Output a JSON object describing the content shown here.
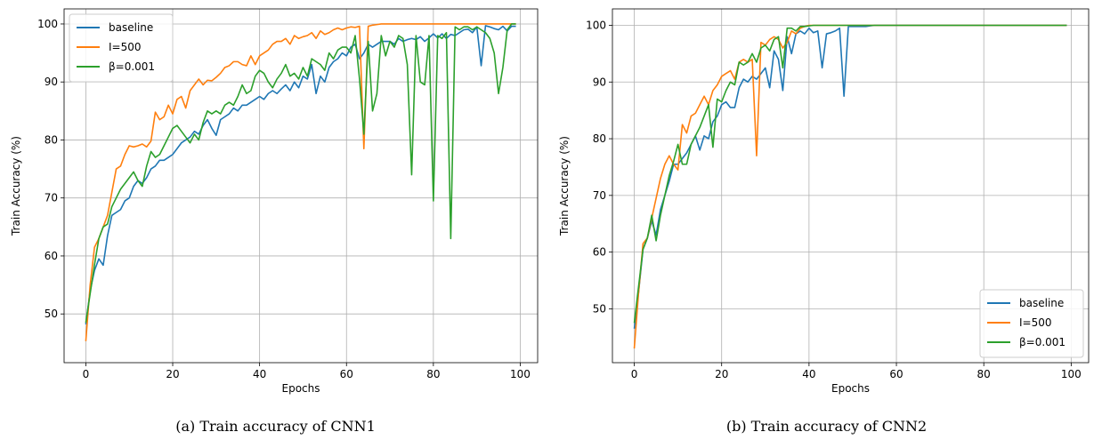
{
  "figure": {
    "caption_a": "(a) Train accuracy of CNN1",
    "caption_b": "(b) Train accuracy of CNN2"
  },
  "chart_data": [
    {
      "type": "line",
      "xlabel": "Epochs",
      "ylabel": "Train Accuracy (%)",
      "xlim": [
        -5,
        104
      ],
      "ylim": [
        41.6,
        102.6
      ],
      "xticks": [
        0,
        20,
        40,
        60,
        80,
        100
      ],
      "yticks": [
        50,
        60,
        70,
        80,
        90,
        100
      ],
      "grid": true,
      "legend": "top-left",
      "x_start": 0,
      "series": [
        {
          "name": "baseline",
          "color": "#1f77b4",
          "values": [
            48.2,
            54.0,
            57.5,
            59.5,
            58.4,
            63.5,
            67.0,
            67.5,
            68.0,
            69.5,
            70.0,
            72.0,
            73.0,
            72.5,
            73.5,
            75.0,
            75.5,
            76.5,
            76.5,
            77.0,
            77.5,
            78.5,
            79.5,
            80.0,
            80.5,
            81.5,
            81.0,
            82.5,
            83.5,
            82.0,
            80.8,
            83.5,
            84.0,
            84.5,
            85.5,
            85.0,
            86.0,
            86.0,
            86.5,
            87.0,
            87.5,
            87.0,
            88.0,
            88.5,
            88.0,
            88.8,
            89.5,
            88.5,
            90.0,
            89.0,
            91.0,
            90.5,
            93.0,
            88.0,
            91.0,
            90.0,
            92.5,
            93.5,
            94.0,
            95.0,
            94.5,
            96.0,
            96.5,
            94.0,
            95.0,
            96.5,
            96.0,
            96.5,
            97.0,
            97.0,
            97.0,
            96.5,
            97.5,
            97.0,
            97.3,
            97.5,
            97.3,
            97.8,
            97.0,
            97.6,
            98.3,
            97.6,
            98.3,
            97.5,
            98.2,
            98.0,
            98.5,
            99.0,
            99.1,
            98.5,
            99.5,
            92.8,
            99.7,
            99.5,
            99.2,
            99.0,
            99.6,
            98.8,
            99.6,
            99.6
          ]
        },
        {
          "name": "I=500",
          "color": "#ff7f0e",
          "values": [
            45.3,
            55.0,
            61.5,
            63.0,
            65.0,
            67.0,
            71.0,
            75.0,
            75.5,
            77.5,
            79.0,
            78.8,
            79.0,
            79.3,
            78.8,
            79.8,
            84.8,
            83.5,
            84.0,
            86.0,
            84.5,
            87.0,
            87.5,
            85.5,
            88.5,
            89.5,
            90.5,
            89.5,
            90.3,
            90.2,
            90.8,
            91.5,
            92.5,
            92.8,
            93.5,
            93.5,
            93.0,
            92.8,
            94.5,
            93.0,
            94.5,
            95.0,
            95.5,
            96.5,
            97.0,
            97.0,
            97.5,
            96.5,
            98.0,
            97.5,
            97.8,
            98.0,
            98.5,
            97.5,
            98.8,
            98.2,
            98.5,
            99.0,
            99.3,
            99.0,
            99.3,
            99.5,
            99.4,
            99.6,
            78.5,
            99.6,
            99.8,
            99.9,
            100.0,
            100.0,
            100.0,
            100.0,
            100.0,
            100.0,
            100.0,
            100.0,
            100.0,
            100.0,
            100.0,
            100.0,
            100.0,
            100.0,
            100.0,
            100.0,
            100.0,
            100.0,
            100.0,
            100.0,
            100.0,
            100.0,
            100.0,
            100.0,
            100.0,
            100.0,
            100.0,
            100.0,
            100.0,
            100.0,
            100.0,
            100.0
          ]
        },
        {
          "name": "β=0.001",
          "color": "#2ca02c",
          "values": [
            48.5,
            53.5,
            58.5,
            63.0,
            65.0,
            65.5,
            68.5,
            70.0,
            71.5,
            72.5,
            73.5,
            74.5,
            73.0,
            72.0,
            75.5,
            78.0,
            77.0,
            77.5,
            79.0,
            80.5,
            82.0,
            82.5,
            81.5,
            80.5,
            79.5,
            81.0,
            80.0,
            83.0,
            85.0,
            84.5,
            85.0,
            84.5,
            86.0,
            86.5,
            86.0,
            87.5,
            89.5,
            88.0,
            88.5,
            91.0,
            92.0,
            91.5,
            90.0,
            89.0,
            90.5,
            91.5,
            93.0,
            91.0,
            91.5,
            90.5,
            92.5,
            91.0,
            94.0,
            93.5,
            93.0,
            92.0,
            95.0,
            94.0,
            95.5,
            96.0,
            96.0,
            95.0,
            98.0,
            90.5,
            81.0,
            97.0,
            85.0,
            88.0,
            98.0,
            94.5,
            97.0,
            96.0,
            98.0,
            97.5,
            93.0,
            74.0,
            98.0,
            90.0,
            89.5,
            98.0,
            69.5,
            98.0,
            97.5,
            98.5,
            63.0,
            99.5,
            99.0,
            99.5,
            99.5,
            99.0,
            99.5,
            99.0,
            98.5,
            97.5,
            95.0,
            88.0,
            92.5,
            99.0,
            100.0,
            100.0
          ]
        }
      ]
    },
    {
      "type": "line",
      "xlabel": "Epochs",
      "ylabel": "Train Accuracy (%)",
      "xlim": [
        -5,
        104
      ],
      "ylim": [
        40.5,
        102.9
      ],
      "xticks": [
        0,
        20,
        40,
        60,
        80,
        100
      ],
      "yticks": [
        50,
        60,
        70,
        80,
        90,
        100
      ],
      "grid": true,
      "legend": "bottom-right",
      "x_start": 0,
      "series": [
        {
          "name": "baseline",
          "color": "#1f77b4",
          "values": [
            46.5,
            53.0,
            60.5,
            62.5,
            65.5,
            63.0,
            67.5,
            70.0,
            72.5,
            75.5,
            75.5,
            76.5,
            77.5,
            79.0,
            80.5,
            78.0,
            80.5,
            80.0,
            83.0,
            84.0,
            86.0,
            86.5,
            85.5,
            85.5,
            89.0,
            90.5,
            90.0,
            91.0,
            90.5,
            91.5,
            92.5,
            89.0,
            95.5,
            94.0,
            88.5,
            98.0,
            95.0,
            98.5,
            99.0,
            98.5,
            99.5,
            98.7,
            99.0,
            92.5,
            98.5,
            98.7,
            99.0,
            99.5,
            87.5,
            99.8,
            99.8,
            99.8,
            99.8,
            99.8,
            99.9,
            100.0,
            100.0,
            100.0,
            100.0,
            100.0,
            100.0,
            100.0,
            100.0,
            100.0,
            100.0,
            100.0,
            100.0,
            100.0,
            100.0,
            100.0,
            100.0,
            100.0,
            100.0,
            100.0,
            100.0,
            100.0,
            100.0,
            100.0,
            100.0,
            100.0,
            100.0,
            100.0,
            100.0,
            100.0,
            100.0,
            100.0,
            100.0,
            100.0,
            100.0,
            100.0,
            100.0,
            100.0,
            100.0,
            100.0,
            100.0,
            100.0,
            100.0,
            100.0,
            100.0,
            100.0
          ]
        },
        {
          "name": "I=500",
          "color": "#ff7f0e",
          "values": [
            43.0,
            53.0,
            61.5,
            62.5,
            66.0,
            69.5,
            73.0,
            75.5,
            77.0,
            75.5,
            74.5,
            82.5,
            81.0,
            84.0,
            84.5,
            86.0,
            87.5,
            86.0,
            88.5,
            89.5,
            91.0,
            91.5,
            92.0,
            90.5,
            93.5,
            94.0,
            93.5,
            94.0,
            77.0,
            97.0,
            96.5,
            97.5,
            98.0,
            97.5,
            96.0,
            97.0,
            99.0,
            98.5,
            99.5,
            99.8,
            100.0,
            100.0,
            100.0,
            100.0,
            100.0,
            100.0,
            100.0,
            100.0,
            100.0,
            100.0,
            100.0,
            100.0,
            100.0,
            100.0,
            100.0,
            100.0,
            100.0,
            100.0,
            100.0,
            100.0,
            100.0,
            100.0,
            100.0,
            100.0,
            100.0,
            100.0,
            100.0,
            100.0,
            100.0,
            100.0,
            100.0,
            100.0,
            100.0,
            100.0,
            100.0,
            100.0,
            100.0,
            100.0,
            100.0,
            100.0,
            100.0,
            100.0,
            100.0,
            100.0,
            100.0,
            100.0,
            100.0,
            100.0,
            100.0,
            100.0,
            100.0,
            100.0,
            100.0,
            100.0,
            100.0,
            100.0,
            100.0,
            100.0,
            100.0,
            100.0
          ]
        },
        {
          "name": "β=0.001",
          "color": "#2ca02c",
          "values": [
            47.5,
            54.0,
            60.5,
            62.5,
            66.5,
            62.0,
            66.5,
            70.0,
            73.5,
            76.0,
            79.0,
            75.5,
            75.5,
            79.0,
            80.5,
            82.0,
            84.0,
            86.0,
            78.5,
            87.0,
            86.5,
            88.5,
            90.0,
            89.5,
            93.5,
            93.0,
            93.5,
            95.0,
            93.5,
            96.0,
            96.5,
            95.5,
            97.5,
            98.0,
            92.5,
            99.5,
            99.5,
            99.0,
            99.8,
            99.8,
            99.9,
            100.0,
            100.0,
            100.0,
            100.0,
            100.0,
            100.0,
            100.0,
            100.0,
            100.0,
            100.0,
            100.0,
            100.0,
            100.0,
            100.0,
            100.0,
            100.0,
            100.0,
            100.0,
            100.0,
            100.0,
            100.0,
            100.0,
            100.0,
            100.0,
            100.0,
            100.0,
            100.0,
            100.0,
            100.0,
            100.0,
            100.0,
            100.0,
            100.0,
            100.0,
            100.0,
            100.0,
            100.0,
            100.0,
            100.0,
            100.0,
            100.0,
            100.0,
            100.0,
            100.0,
            100.0,
            100.0,
            100.0,
            100.0,
            100.0,
            100.0,
            100.0,
            100.0,
            100.0,
            100.0,
            100.0,
            100.0,
            100.0,
            100.0,
            100.0
          ]
        }
      ]
    }
  ]
}
